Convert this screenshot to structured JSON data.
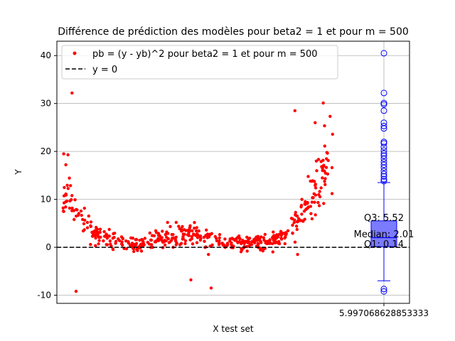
{
  "chart_data": {
    "type": "scatter",
    "title": "Différence de prédiction des modèles pour beta2 = 1 et pour m = 500",
    "xlabel": "X test set",
    "ylabel": "Y",
    "ylim": [
      -11.7,
      43.0
    ],
    "grid": true,
    "legend_position": "top-left",
    "x_tick_labels": [
      "5.997068628853333"
    ],
    "y_ticks": [
      -10,
      0,
      10,
      20,
      30,
      40
    ],
    "colors": {
      "points": "#ff0000",
      "boxplot": "#0000ff",
      "box_fill": "#7b7bff",
      "reference_line": "#000000",
      "grid": "#b0b0b0"
    },
    "series": [
      {
        "name": "pb = (y - yb)^2 pour beta2 = 1 et pour m = 500",
        "marker": "dot",
        "count": 500,
        "trend_points": [
          [
            -1.0,
            14.0
          ],
          [
            -0.9,
            7.0
          ],
          [
            -0.8,
            4.0
          ],
          [
            -0.7,
            2.0
          ],
          [
            -0.55,
            0.5
          ],
          [
            -0.4,
            1.0
          ],
          [
            -0.3,
            2.0
          ],
          [
            -0.2,
            2.5
          ],
          [
            -0.05,
            2.5
          ],
          [
            0.05,
            2.0
          ],
          [
            0.2,
            1.0
          ],
          [
            0.35,
            0.5
          ],
          [
            0.5,
            1.0
          ],
          [
            0.6,
            2.0
          ],
          [
            0.7,
            4.0
          ],
          [
            0.8,
            8.0
          ],
          [
            0.9,
            14.0
          ],
          [
            1.0,
            20.0
          ]
        ],
        "notable_points": [
          [
            -0.93,
            32.2
          ],
          [
            -0.96,
            19.3
          ],
          [
            -0.9,
            -9.2
          ],
          [
            0.72,
            28.5
          ],
          [
            0.87,
            26.0
          ],
          [
            0.93,
            30.1
          ],
          [
            0.1,
            -8.5
          ],
          [
            -0.05,
            -6.8
          ],
          [
            0.74,
            -1.5
          ]
        ]
      },
      {
        "name": "y = 0",
        "type": "reference_line",
        "value": 0,
        "style": "dashed"
      }
    ],
    "boxplot": {
      "q1": 0.14,
      "median": 2.01,
      "q3": 5.52,
      "whisker_low": -7.0,
      "whisker_high": 13.5,
      "outliers": [
        40.5,
        32.2,
        30.1,
        29.8,
        28.5,
        26.0,
        25.3,
        24.8,
        22.0,
        21.7,
        20.9,
        20.2,
        19.6,
        19.1,
        18.5,
        17.8,
        17.2,
        16.6,
        15.9,
        15.3,
        14.8,
        14.2,
        13.8,
        -8.7,
        -9.2
      ]
    },
    "annotations": [
      "Q3: 5.52",
      "Median: 2.01",
      "Q1: 0.14"
    ]
  }
}
